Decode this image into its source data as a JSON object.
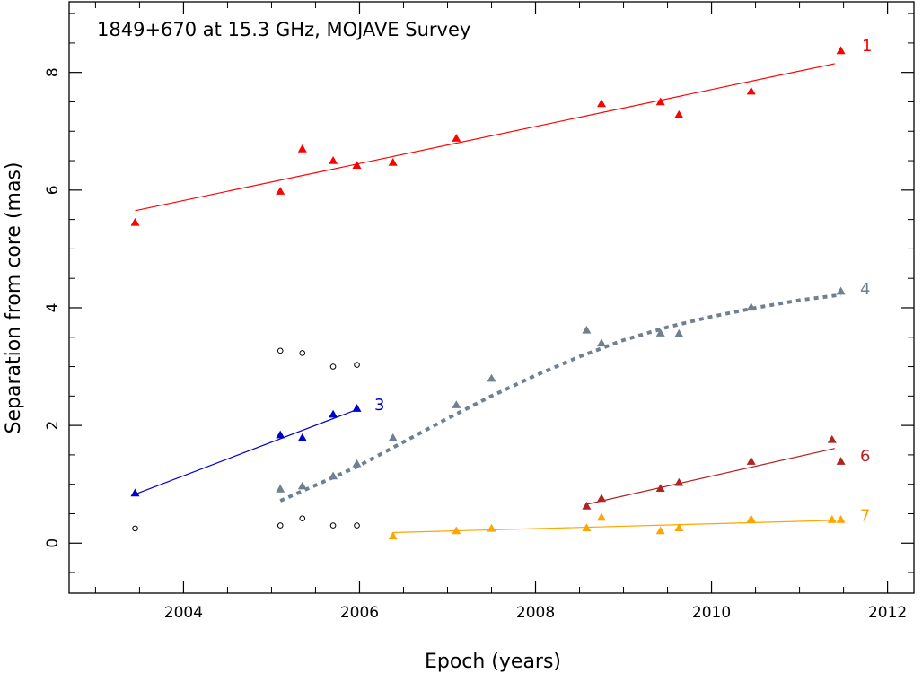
{
  "chart_data": {
    "type": "scatter",
    "title": "1849+670 at 15.3 GHz, MOJAVE Survey",
    "xlabel": "Epoch (years)",
    "ylabel": "Separation from core (mas)",
    "xlim": [
      2002.7,
      2012.3
    ],
    "ylim": [
      -0.85,
      9.2
    ],
    "x_ticks": [
      2004,
      2006,
      2008,
      2010,
      2012
    ],
    "y_ticks": [
      0,
      2,
      4,
      6,
      8
    ],
    "x_tick_labels": [
      "2004",
      "2006",
      "2008",
      "2010",
      "2012"
    ],
    "y_tick_labels": [
      "0",
      "2",
      "4",
      "6",
      "8"
    ],
    "series": [
      {
        "name": "1",
        "color": "#ff0000",
        "marker": "triangle",
        "points": [
          [
            2003.45,
            5.45
          ],
          [
            2005.1,
            5.98
          ],
          [
            2005.35,
            6.7
          ],
          [
            2005.7,
            6.5
          ],
          [
            2005.97,
            6.42
          ],
          [
            2006.38,
            6.47
          ],
          [
            2007.1,
            6.88
          ],
          [
            2008.75,
            7.47
          ],
          [
            2009.42,
            7.5
          ],
          [
            2009.63,
            7.28
          ],
          [
            2010.45,
            7.68
          ],
          [
            2011.47,
            8.37
          ]
        ],
        "fit": {
          "style": "solid",
          "points": [
            [
              2003.45,
              5.65
            ],
            [
              2011.4,
              8.15
            ]
          ]
        }
      },
      {
        "name": "3",
        "color": "#0000cc",
        "marker": "triangle",
        "points": [
          [
            2003.45,
            0.85
          ],
          [
            2005.1,
            1.84
          ],
          [
            2005.35,
            1.79
          ],
          [
            2005.7,
            2.19
          ],
          [
            2005.97,
            2.29
          ]
        ],
        "fit": {
          "style": "solid",
          "points": [
            [
              2003.45,
              0.83
            ],
            [
              2005.97,
              2.27
            ]
          ]
        }
      },
      {
        "name": "4",
        "color": "#708090",
        "marker": "triangle",
        "points": [
          [
            2005.1,
            0.92
          ],
          [
            2005.35,
            0.97
          ],
          [
            2005.7,
            1.14
          ],
          [
            2005.97,
            1.35
          ],
          [
            2006.38,
            1.79
          ],
          [
            2007.1,
            2.35
          ],
          [
            2007.5,
            2.8
          ],
          [
            2008.58,
            3.62
          ],
          [
            2008.75,
            3.4
          ],
          [
            2009.42,
            3.57
          ],
          [
            2009.63,
            3.56
          ],
          [
            2010.45,
            4.01
          ],
          [
            2011.47,
            4.28
          ]
        ],
        "fit": {
          "style": "dotted",
          "points": [
            [
              2005.1,
              0.72
            ],
            [
              2005.6,
              1.05
            ],
            [
              2006.0,
              1.32
            ],
            [
              2006.5,
              1.72
            ],
            [
              2007.0,
              2.12
            ],
            [
              2007.5,
              2.5
            ],
            [
              2008.0,
              2.85
            ],
            [
              2008.5,
              3.17
            ],
            [
              2009.0,
              3.45
            ],
            [
              2009.5,
              3.67
            ],
            [
              2010.0,
              3.85
            ],
            [
              2010.5,
              4.0
            ],
            [
              2011.0,
              4.13
            ],
            [
              2011.47,
              4.22
            ]
          ]
        }
      },
      {
        "name": "6",
        "color": "#b22222",
        "marker": "triangle",
        "points": [
          [
            2008.58,
            0.63
          ],
          [
            2008.75,
            0.76
          ],
          [
            2009.42,
            0.93
          ],
          [
            2009.63,
            1.03
          ],
          [
            2010.45,
            1.39
          ],
          [
            2011.37,
            1.76
          ],
          [
            2011.47,
            1.39
          ]
        ],
        "fit": {
          "style": "solid",
          "points": [
            [
              2008.58,
              0.66
            ],
            [
              2011.4,
              1.61
            ]
          ]
        }
      },
      {
        "name": "7",
        "color": "#ffa500",
        "marker": "triangle",
        "points": [
          [
            2006.38,
            0.12
          ],
          [
            2007.1,
            0.21
          ],
          [
            2007.5,
            0.25
          ],
          [
            2008.58,
            0.26
          ],
          [
            2008.75,
            0.44
          ],
          [
            2009.42,
            0.21
          ],
          [
            2009.63,
            0.26
          ],
          [
            2010.45,
            0.41
          ],
          [
            2011.37,
            0.4
          ],
          [
            2011.47,
            0.4
          ]
        ],
        "fit": {
          "style": "solid",
          "points": [
            [
              2006.38,
              0.18
            ],
            [
              2011.47,
              0.39
            ]
          ]
        }
      },
      {
        "name": "",
        "color": "#000000",
        "marker": "circle",
        "points": [
          [
            2003.45,
            0.25
          ],
          [
            2005.1,
            3.27
          ],
          [
            2005.35,
            3.23
          ],
          [
            2005.7,
            3.0
          ],
          [
            2005.97,
            3.03
          ],
          [
            2005.1,
            0.3
          ],
          [
            2005.35,
            0.42
          ],
          [
            2005.7,
            0.3
          ],
          [
            2005.97,
            0.3
          ]
        ]
      }
    ],
    "grid": false,
    "legend": "labels-at-right"
  }
}
